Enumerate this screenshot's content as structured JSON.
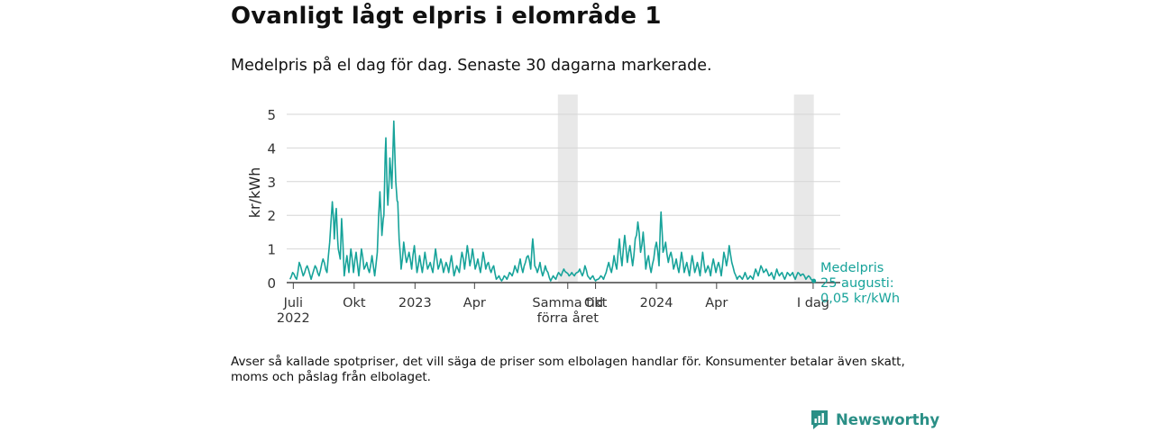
{
  "header": {
    "title": "Ovanligt lågt elpris i elområde 1",
    "subtitle": "Medelpris på el dag för dag.  Senaste 30 dagarna markerade."
  },
  "footnote": "Avser så kallade spotpriser, det vill säga de priser som elbolagen handlar för. Konsumenter betalar även skatt, moms och påslag från elbolaget.",
  "brand": {
    "name": "Newsworthy",
    "color": "#2a8f86"
  },
  "chart_data": {
    "type": "line",
    "title": "Ovanligt lågt elpris i elområde 1",
    "ylabel": "kr/kWh",
    "xlabel": "",
    "ylim": [
      0,
      5.5
    ],
    "yticks": [
      "0",
      "1",
      "2",
      "3",
      "4",
      "5"
    ],
    "xticks": [
      {
        "label": "Juli",
        "sub": "2022",
        "day": 5
      },
      {
        "label": "Okt",
        "sub": "",
        "day": 97
      },
      {
        "label": "2023",
        "sub": "",
        "day": 189
      },
      {
        "label": "Apr",
        "sub": "",
        "day": 279
      },
      {
        "label": "Samma tid",
        "sub": "förra året",
        "day": 420
      },
      {
        "label": "Okt",
        "sub": "",
        "day": 462
      },
      {
        "label": "2024",
        "sub": "",
        "day": 554
      },
      {
        "label": "Apr",
        "sub": "",
        "day": 645
      },
      {
        "label": "I dag",
        "sub": "",
        "day": 791
      }
    ],
    "highlight_days": [
      [
        405,
        435
      ],
      [
        762,
        792
      ]
    ],
    "x_range": [
      -5,
      832
    ],
    "line_color": "#17a39a",
    "series_name": "Medelpris",
    "last_label": [
      "Medelpris",
      "25 augusti:",
      "0,05 kr/kWh"
    ],
    "anchors": [
      [
        0,
        0.1
      ],
      [
        4,
        0.3
      ],
      [
        10,
        0.1
      ],
      [
        14,
        0.6
      ],
      [
        20,
        0.2
      ],
      [
        26,
        0.5
      ],
      [
        32,
        0.1
      ],
      [
        38,
        0.5
      ],
      [
        44,
        0.2
      ],
      [
        50,
        0.7
      ],
      [
        56,
        0.3
      ],
      [
        60,
        1.2
      ],
      [
        64,
        2.4
      ],
      [
        67,
        1.3
      ],
      [
        70,
        2.2
      ],
      [
        73,
        1.0
      ],
      [
        76,
        0.7
      ],
      [
        78,
        1.9
      ],
      [
        82,
        0.2
      ],
      [
        86,
        0.8
      ],
      [
        89,
        0.3
      ],
      [
        92,
        1.0
      ],
      [
        96,
        0.3
      ],
      [
        100,
        0.9
      ],
      [
        104,
        0.2
      ],
      [
        108,
        1.0
      ],
      [
        112,
        0.4
      ],
      [
        116,
        0.6
      ],
      [
        120,
        0.3
      ],
      [
        124,
        0.8
      ],
      [
        128,
        0.2
      ],
      [
        132,
        0.9
      ],
      [
        136,
        2.7
      ],
      [
        139,
        1.4
      ],
      [
        142,
        2.0
      ],
      [
        145,
        4.3
      ],
      [
        148,
        2.3
      ],
      [
        151,
        3.7
      ],
      [
        154,
        2.8
      ],
      [
        157,
        4.8
      ],
      [
        160,
        3.0
      ],
      [
        163,
        2.4
      ],
      [
        165,
        1.3
      ],
      [
        168,
        0.4
      ],
      [
        172,
        1.2
      ],
      [
        176,
        0.6
      ],
      [
        180,
        0.9
      ],
      [
        184,
        0.4
      ],
      [
        188,
        1.1
      ],
      [
        192,
        0.3
      ],
      [
        196,
        0.8
      ],
      [
        200,
        0.3
      ],
      [
        204,
        0.9
      ],
      [
        208,
        0.4
      ],
      [
        212,
        0.6
      ],
      [
        216,
        0.3
      ],
      [
        220,
        1.0
      ],
      [
        224,
        0.4
      ],
      [
        228,
        0.7
      ],
      [
        232,
        0.3
      ],
      [
        236,
        0.6
      ],
      [
        240,
        0.3
      ],
      [
        244,
        0.8
      ],
      [
        248,
        0.2
      ],
      [
        252,
        0.5
      ],
      [
        256,
        0.3
      ],
      [
        260,
        0.9
      ],
      [
        264,
        0.4
      ],
      [
        268,
        1.1
      ],
      [
        272,
        0.5
      ],
      [
        276,
        1.0
      ],
      [
        280,
        0.4
      ],
      [
        284,
        0.7
      ],
      [
        288,
        0.3
      ],
      [
        292,
        0.9
      ],
      [
        296,
        0.4
      ],
      [
        300,
        0.6
      ],
      [
        304,
        0.3
      ],
      [
        308,
        0.5
      ],
      [
        312,
        0.1
      ],
      [
        316,
        0.2
      ],
      [
        320,
        0.05
      ],
      [
        324,
        0.2
      ],
      [
        328,
        0.1
      ],
      [
        332,
        0.3
      ],
      [
        336,
        0.2
      ],
      [
        340,
        0.5
      ],
      [
        344,
        0.3
      ],
      [
        348,
        0.7
      ],
      [
        352,
        0.3
      ],
      [
        356,
        0.6
      ],
      [
        360,
        0.8
      ],
      [
        364,
        0.4
      ],
      [
        367,
        1.3
      ],
      [
        370,
        0.5
      ],
      [
        374,
        0.3
      ],
      [
        378,
        0.6
      ],
      [
        382,
        0.2
      ],
      [
        386,
        0.5
      ],
      [
        390,
        0.3
      ],
      [
        394,
        0.05
      ],
      [
        398,
        0.2
      ],
      [
        402,
        0.1
      ],
      [
        406,
        0.3
      ],
      [
        410,
        0.2
      ],
      [
        414,
        0.4
      ],
      [
        418,
        0.3
      ],
      [
        422,
        0.2
      ],
      [
        426,
        0.3
      ],
      [
        430,
        0.2
      ],
      [
        434,
        0.3
      ],
      [
        438,
        0.4
      ],
      [
        442,
        0.2
      ],
      [
        446,
        0.5
      ],
      [
        450,
        0.2
      ],
      [
        454,
        0.1
      ],
      [
        458,
        0.2
      ],
      [
        462,
        0.05
      ],
      [
        466,
        0.1
      ],
      [
        470,
        0.2
      ],
      [
        474,
        0.1
      ],
      [
        478,
        0.3
      ],
      [
        482,
        0.6
      ],
      [
        486,
        0.3
      ],
      [
        490,
        0.8
      ],
      [
        494,
        0.4
      ],
      [
        498,
        1.3
      ],
      [
        502,
        0.5
      ],
      [
        506,
        1.4
      ],
      [
        510,
        0.6
      ],
      [
        514,
        1.1
      ],
      [
        518,
        0.5
      ],
      [
        522,
        1.3
      ],
      [
        526,
        1.8
      ],
      [
        530,
        0.9
      ],
      [
        534,
        1.5
      ],
      [
        538,
        0.4
      ],
      [
        542,
        0.8
      ],
      [
        546,
        0.3
      ],
      [
        550,
        0.7
      ],
      [
        554,
        1.2
      ],
      [
        558,
        0.5
      ],
      [
        561,
        2.1
      ],
      [
        564,
        0.9
      ],
      [
        568,
        1.2
      ],
      [
        572,
        0.6
      ],
      [
        576,
        0.9
      ],
      [
        580,
        0.4
      ],
      [
        584,
        0.7
      ],
      [
        588,
        0.3
      ],
      [
        592,
        0.9
      ],
      [
        596,
        0.3
      ],
      [
        600,
        0.6
      ],
      [
        604,
        0.2
      ],
      [
        608,
        0.8
      ],
      [
        612,
        0.3
      ],
      [
        616,
        0.6
      ],
      [
        620,
        0.2
      ],
      [
        624,
        0.9
      ],
      [
        628,
        0.3
      ],
      [
        632,
        0.5
      ],
      [
        636,
        0.2
      ],
      [
        640,
        0.7
      ],
      [
        644,
        0.3
      ],
      [
        648,
        0.6
      ],
      [
        652,
        0.2
      ],
      [
        656,
        0.9
      ],
      [
        660,
        0.5
      ],
      [
        664,
        1.1
      ],
      [
        668,
        0.6
      ],
      [
        672,
        0.3
      ],
      [
        676,
        0.1
      ],
      [
        680,
        0.2
      ],
      [
        684,
        0.1
      ],
      [
        688,
        0.3
      ],
      [
        692,
        0.1
      ],
      [
        696,
        0.2
      ],
      [
        700,
        0.1
      ],
      [
        704,
        0.4
      ],
      [
        708,
        0.2
      ],
      [
        712,
        0.5
      ],
      [
        716,
        0.3
      ],
      [
        720,
        0.4
      ],
      [
        724,
        0.2
      ],
      [
        728,
        0.3
      ],
      [
        732,
        0.1
      ],
      [
        736,
        0.4
      ],
      [
        740,
        0.2
      ],
      [
        744,
        0.3
      ],
      [
        748,
        0.1
      ],
      [
        752,
        0.3
      ],
      [
        756,
        0.2
      ],
      [
        760,
        0.3
      ],
      [
        764,
        0.1
      ],
      [
        768,
        0.3
      ],
      [
        772,
        0.2
      ],
      [
        776,
        0.25
      ],
      [
        780,
        0.1
      ],
      [
        784,
        0.2
      ],
      [
        788,
        0.1
      ],
      [
        792,
        0.05
      ]
    ]
  }
}
